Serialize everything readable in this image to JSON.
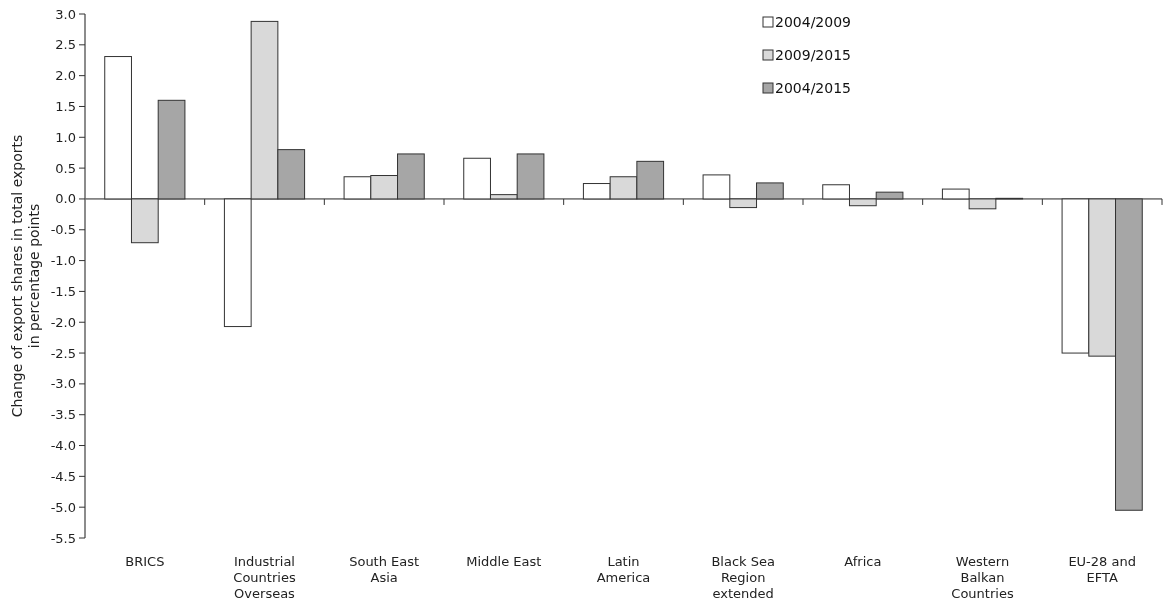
{
  "chart_data": {
    "type": "bar",
    "ylabel": "Change of export shares in total exports in percentage points",
    "categories": [
      "BRICS",
      "Industrial Countries Overseas",
      "South East Asia",
      "Middle East",
      "Latin America",
      "Black Sea Region extended",
      "Africa",
      "Western Balkan Countries",
      "EU-28 and EFTA"
    ],
    "series": [
      {
        "name": "2004/2009",
        "color": "#ffffff",
        "values": [
          2.31,
          -2.07,
          0.36,
          0.66,
          0.25,
          0.39,
          0.23,
          0.16,
          -2.5
        ]
      },
      {
        "name": "2009/2015",
        "color": "#d9d9d9",
        "values": [
          -0.71,
          2.88,
          0.38,
          0.07,
          0.36,
          -0.14,
          -0.11,
          -0.16,
          -2.55
        ]
      },
      {
        "name": "2004/2015",
        "color": "#a6a6a6",
        "values": [
          1.6,
          0.8,
          0.73,
          0.73,
          0.61,
          0.26,
          0.11,
          0.01,
          -5.05
        ]
      }
    ],
    "ylim": [
      -5.5,
      3.0
    ],
    "yticks": [
      {
        "value": 3,
        "label": "3.0"
      },
      2.5,
      {
        "value": 2,
        "label": "2.0"
      },
      1.5,
      {
        "value": 1,
        "label": "1.0"
      },
      0.5,
      {
        "value": 0,
        "label": "0.0"
      },
      -0.5,
      {
        "value": -1,
        "label": "-1.0"
      },
      -1.5,
      {
        "value": -2,
        "label": "-2.0"
      },
      -2.5,
      {
        "value": -3,
        "label": "-3.0"
      },
      -3.5,
      {
        "value": -4,
        "label": "-4.0"
      },
      -4.5,
      {
        "value": -5,
        "label": "-5.0"
      },
      -5.5
    ],
    "legend": "top right"
  }
}
